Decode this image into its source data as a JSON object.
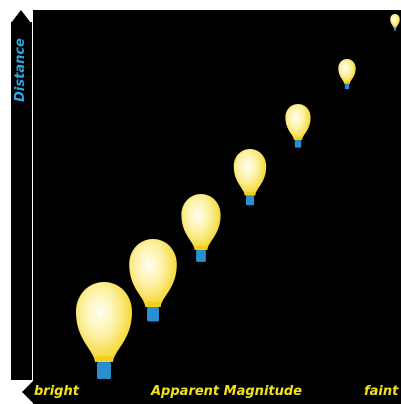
{
  "axes": {
    "y_label": "Distance",
    "x_label": "Apparent Magnitude",
    "x_min_label": "bright",
    "x_max_label": "faint"
  },
  "colors": {
    "background": "#000000",
    "bulb_glass_center": "#fffce8",
    "bulb_glass_edge": "#f6d928",
    "bulb_base": "#2a8fd0",
    "x_axis_text": "#f2e21a",
    "y_axis_text": "#2aa6e0"
  },
  "bulbs_count": 7
}
